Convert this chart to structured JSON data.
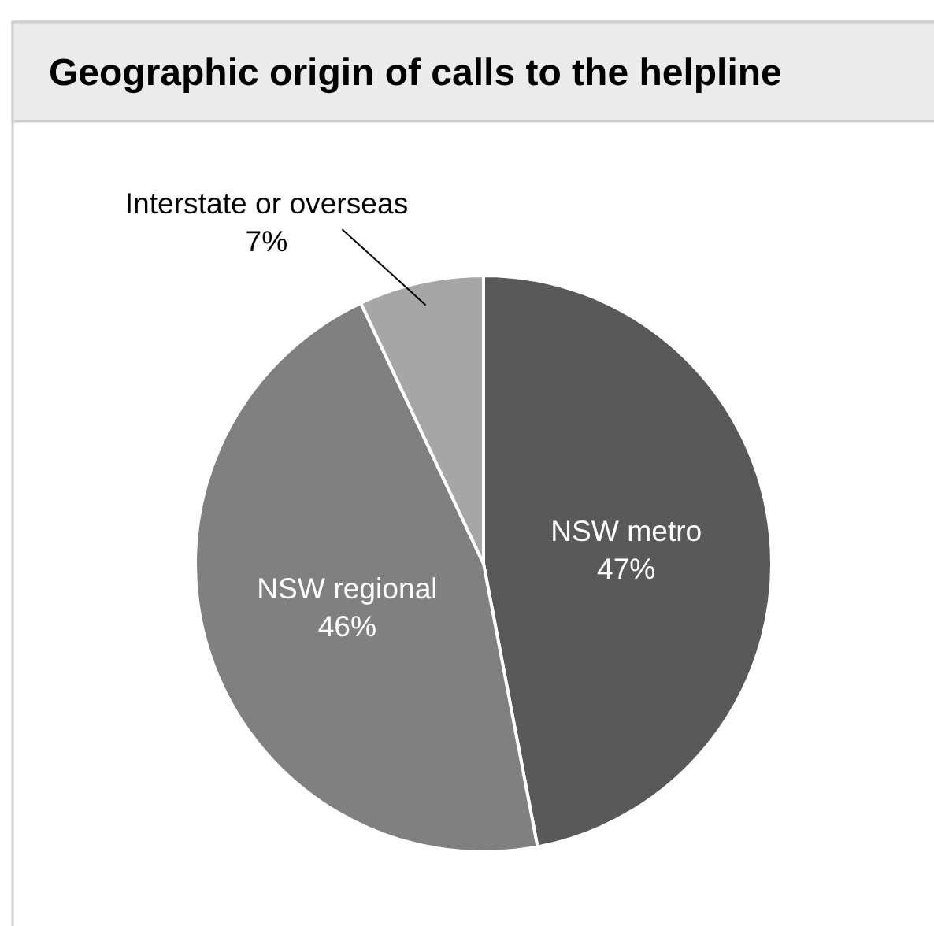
{
  "chart_data": {
    "type": "pie",
    "title": "Geographic origin of calls to the helpline",
    "categories": [
      "NSW metro",
      "NSW regional",
      "Interstate or overseas"
    ],
    "values": [
      47,
      46,
      7
    ],
    "colors": [
      "#595959",
      "#808080",
      "#a6a6a6"
    ],
    "value_labels": [
      "47%",
      "46%",
      "7%"
    ]
  }
}
